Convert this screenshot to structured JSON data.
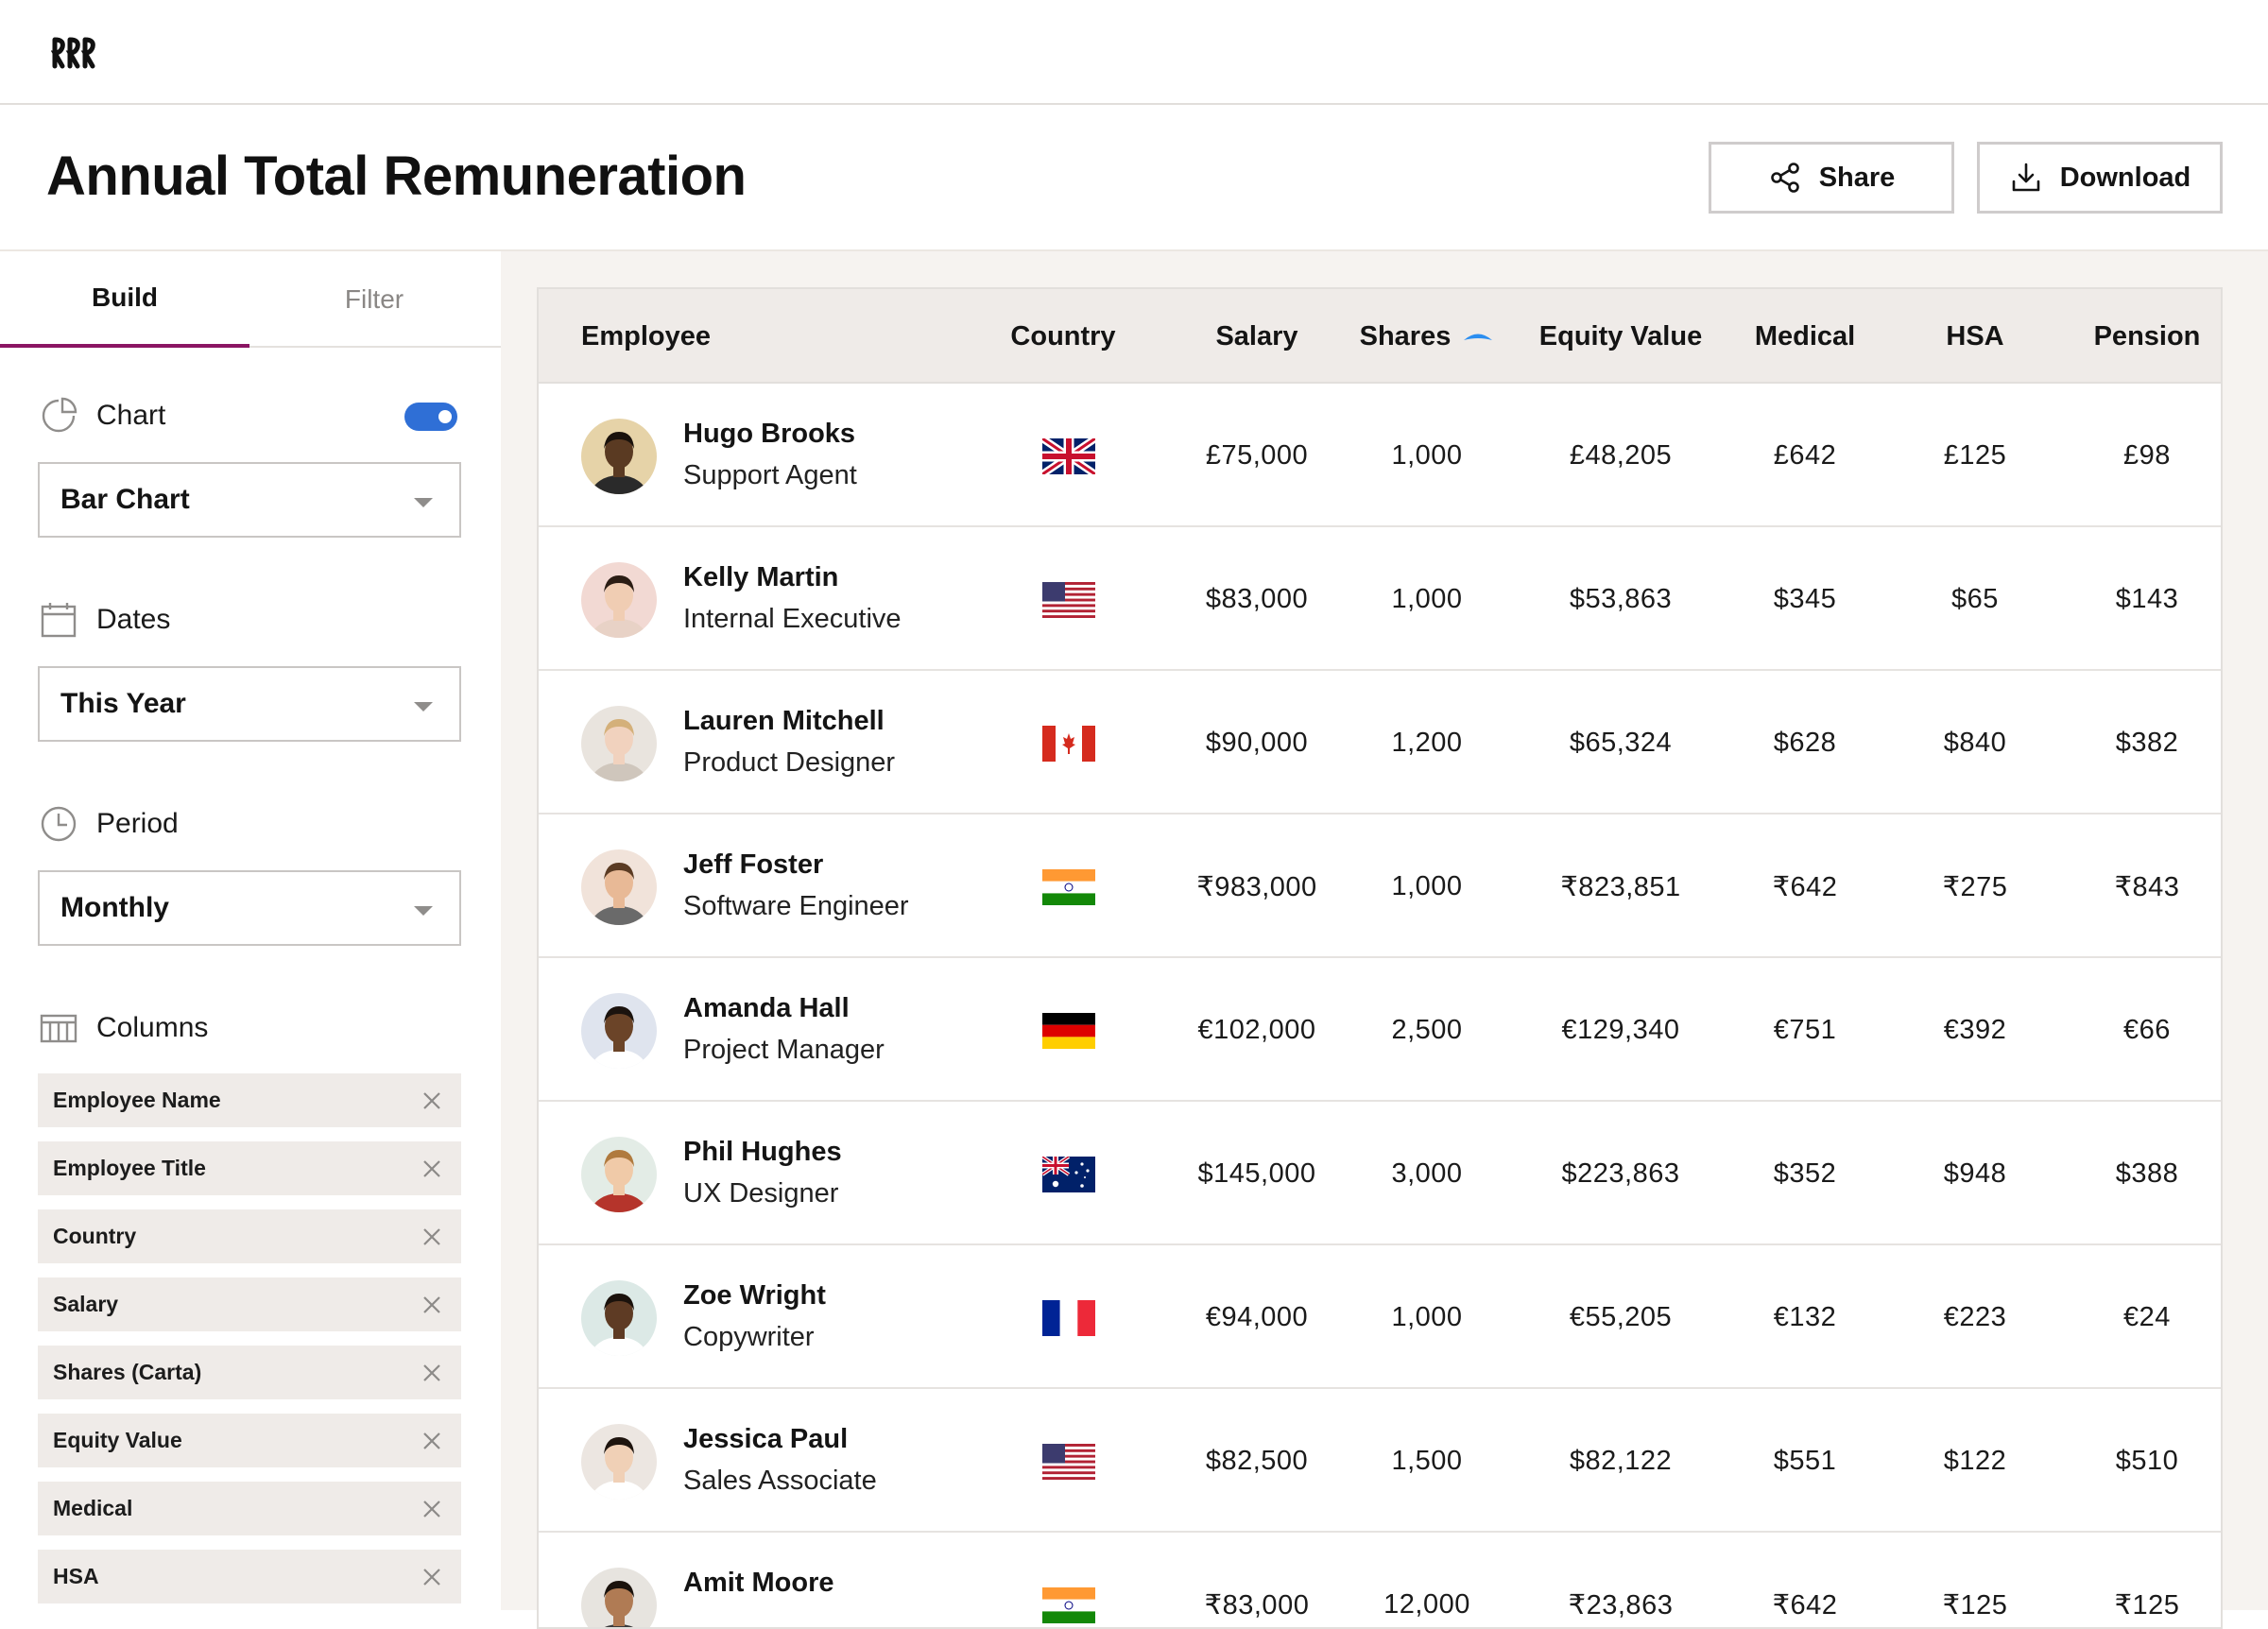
{
  "page": {
    "title": "Annual Total Remuneration",
    "share_label": "Share",
    "download_label": "Download"
  },
  "sidebar": {
    "tabs": [
      {
        "label": "Build"
      },
      {
        "label": "Filter"
      }
    ],
    "chart": {
      "label": "Chart",
      "enabled": true,
      "value": "Bar Chart"
    },
    "dates": {
      "label": "Dates",
      "value": "This Year"
    },
    "period": {
      "label": "Period",
      "value": "Monthly"
    },
    "columns": {
      "label": "Columns",
      "items": [
        "Employee Name",
        "Employee Title",
        "Country",
        "Salary",
        "Shares (Carta)",
        "Equity Value",
        "Medical",
        "HSA"
      ]
    }
  },
  "table": {
    "headers": {
      "employee": "Employee",
      "country": "Country",
      "salary": "Salary",
      "shares": "Shares",
      "equity": "Equity Value",
      "medical": "Medical",
      "hsa": "HSA",
      "pension": "Pension"
    },
    "sort": {
      "column": "Shares",
      "indicator_color": "#2b8ef0"
    },
    "rows": [
      {
        "name": "Hugo Brooks",
        "title": "Support Agent",
        "country": "uk",
        "salary": "£75,000",
        "shares": "1,000",
        "equity": "£48,205",
        "medical": "£642",
        "hsa": "£125",
        "pension": "£98"
      },
      {
        "name": "Kelly Martin",
        "title": "Internal Executive",
        "country": "us",
        "salary": "$83,000",
        "shares": "1,000",
        "equity": "$53,863",
        "medical": "$345",
        "hsa": "$65",
        "pension": "$143"
      },
      {
        "name": "Lauren Mitchell",
        "title": "Product Designer",
        "country": "ca",
        "salary": "$90,000",
        "shares": "1,200",
        "equity": "$65,324",
        "medical": "$628",
        "hsa": "$840",
        "pension": "$382"
      },
      {
        "name": "Jeff Foster",
        "title": "Software Engineer",
        "country": "in",
        "salary": "₹983,000",
        "shares": "1,000",
        "equity": "₹823,851",
        "medical": "₹642",
        "hsa": "₹275",
        "pension": "₹843"
      },
      {
        "name": "Amanda Hall",
        "title": "Project Manager",
        "country": "de",
        "salary": "€102,000",
        "shares": "2,500",
        "equity": "€129,340",
        "medical": "€751",
        "hsa": "€392",
        "pension": "€66"
      },
      {
        "name": "Phil Hughes",
        "title": "UX Designer",
        "country": "au",
        "salary": "$145,000",
        "shares": "3,000",
        "equity": "$223,863",
        "medical": "$352",
        "hsa": "$948",
        "pension": "$388"
      },
      {
        "name": "Zoe Wright",
        "title": "Copywriter",
        "country": "fr",
        "salary": "€94,000",
        "shares": "1,000",
        "equity": "€55,205",
        "medical": "€132",
        "hsa": "€223",
        "pension": "€24"
      },
      {
        "name": "Jessica Paul",
        "title": "Sales Associate",
        "country": "us",
        "salary": "$82,500",
        "shares": "1,500",
        "equity": "$82,122",
        "medical": "$551",
        "hsa": "$122",
        "pension": "$510"
      },
      {
        "name": "Amit Moore",
        "title": "",
        "country": "in",
        "salary": "₹83,000",
        "shares": "12,000",
        "equity": "₹23,863",
        "medical": "₹642",
        "hsa": "₹125",
        "pension": "₹125"
      }
    ]
  },
  "colors": {
    "accent": "#8b1563",
    "toggle": "#2f6fd6",
    "header_bg": "#efebe8",
    "page_bg": "#f6f3f0"
  }
}
